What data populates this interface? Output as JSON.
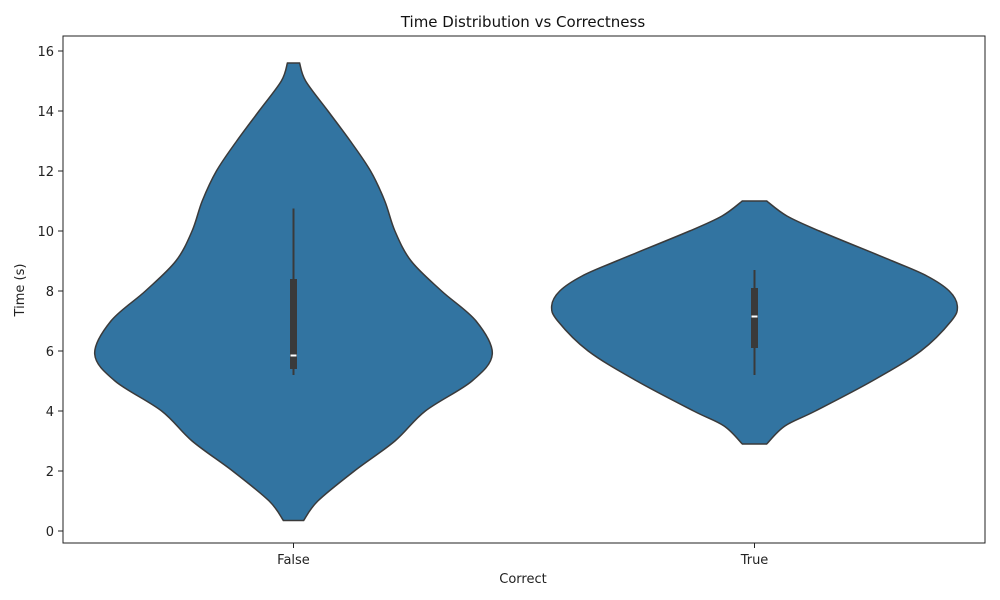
{
  "chart_data": {
    "type": "violin",
    "title": "Time Distribution vs Correctness",
    "xlabel": "Correct",
    "ylabel": "Time (s)",
    "categories": [
      "False",
      "True"
    ],
    "ylim": [
      -0.4,
      16.5
    ],
    "yticks": [
      0,
      2,
      4,
      6,
      8,
      10,
      12,
      14,
      16
    ],
    "grid": false,
    "color": "#3274a1",
    "edge_color": "#3a3a3a",
    "violins": [
      {
        "category": "False",
        "min": 0.35,
        "max": 15.6,
        "q1": 5.4,
        "median": 5.85,
        "q3": 8.4,
        "whisker_low": 5.2,
        "whisker_high": 10.75,
        "density_y": [
          0.35,
          1.0,
          2.0,
          3.0,
          4.0,
          5.0,
          5.9,
          7.0,
          8.0,
          9.0,
          10.0,
          11.0,
          12.0,
          13.0,
          14.0,
          15.0,
          15.6
        ],
        "density_w": [
          0.05,
          0.12,
          0.3,
          0.5,
          0.65,
          0.88,
          0.98,
          0.9,
          0.73,
          0.58,
          0.5,
          0.45,
          0.38,
          0.28,
          0.17,
          0.06,
          0.03
        ]
      },
      {
        "category": "True",
        "min": 2.9,
        "max": 11.0,
        "q1": 6.1,
        "median": 7.15,
        "q3": 8.1,
        "whisker_low": 5.2,
        "whisker_high": 8.7,
        "density_y": [
          2.9,
          3.5,
          4.0,
          5.0,
          6.0,
          7.0,
          7.5,
          8.0,
          8.5,
          9.0,
          10.0,
          10.5,
          11.0
        ],
        "density_w": [
          0.06,
          0.15,
          0.3,
          0.58,
          0.82,
          0.97,
          1.0,
          0.96,
          0.85,
          0.68,
          0.32,
          0.16,
          0.06
        ]
      }
    ]
  }
}
